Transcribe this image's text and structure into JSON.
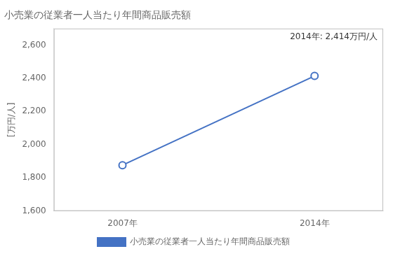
{
  "chart_data": {
    "type": "line",
    "title": "小売業の従業者一人当たり年間商品販売額",
    "ylabel": "[万円/人]",
    "annotation": "2014年: 2,414万円/人",
    "x": [
      2007,
      2014
    ],
    "series": [
      {
        "name": "小売業の従業者一人当たり年間商品販売額",
        "color": "#4472C4",
        "values": [
          1876,
          2414
        ]
      }
    ],
    "xlim": [
      2004.5,
      2016.5
    ],
    "xticks": [
      {
        "value": 2007,
        "label": "2007年"
      },
      {
        "value": 2014,
        "label": "2014年"
      }
    ],
    "ylim": [
      1600,
      2700
    ],
    "yticks": [
      {
        "value": 1600,
        "label": "1,600"
      },
      {
        "value": 1800,
        "label": "1,800"
      },
      {
        "value": 2000,
        "label": "2,000"
      },
      {
        "value": 2200,
        "label": "2,200"
      },
      {
        "value": 2400,
        "label": "2,400"
      },
      {
        "value": 2600,
        "label": "2,600"
      }
    ],
    "grid": false,
    "legend": "bottom",
    "marker": "circle"
  }
}
